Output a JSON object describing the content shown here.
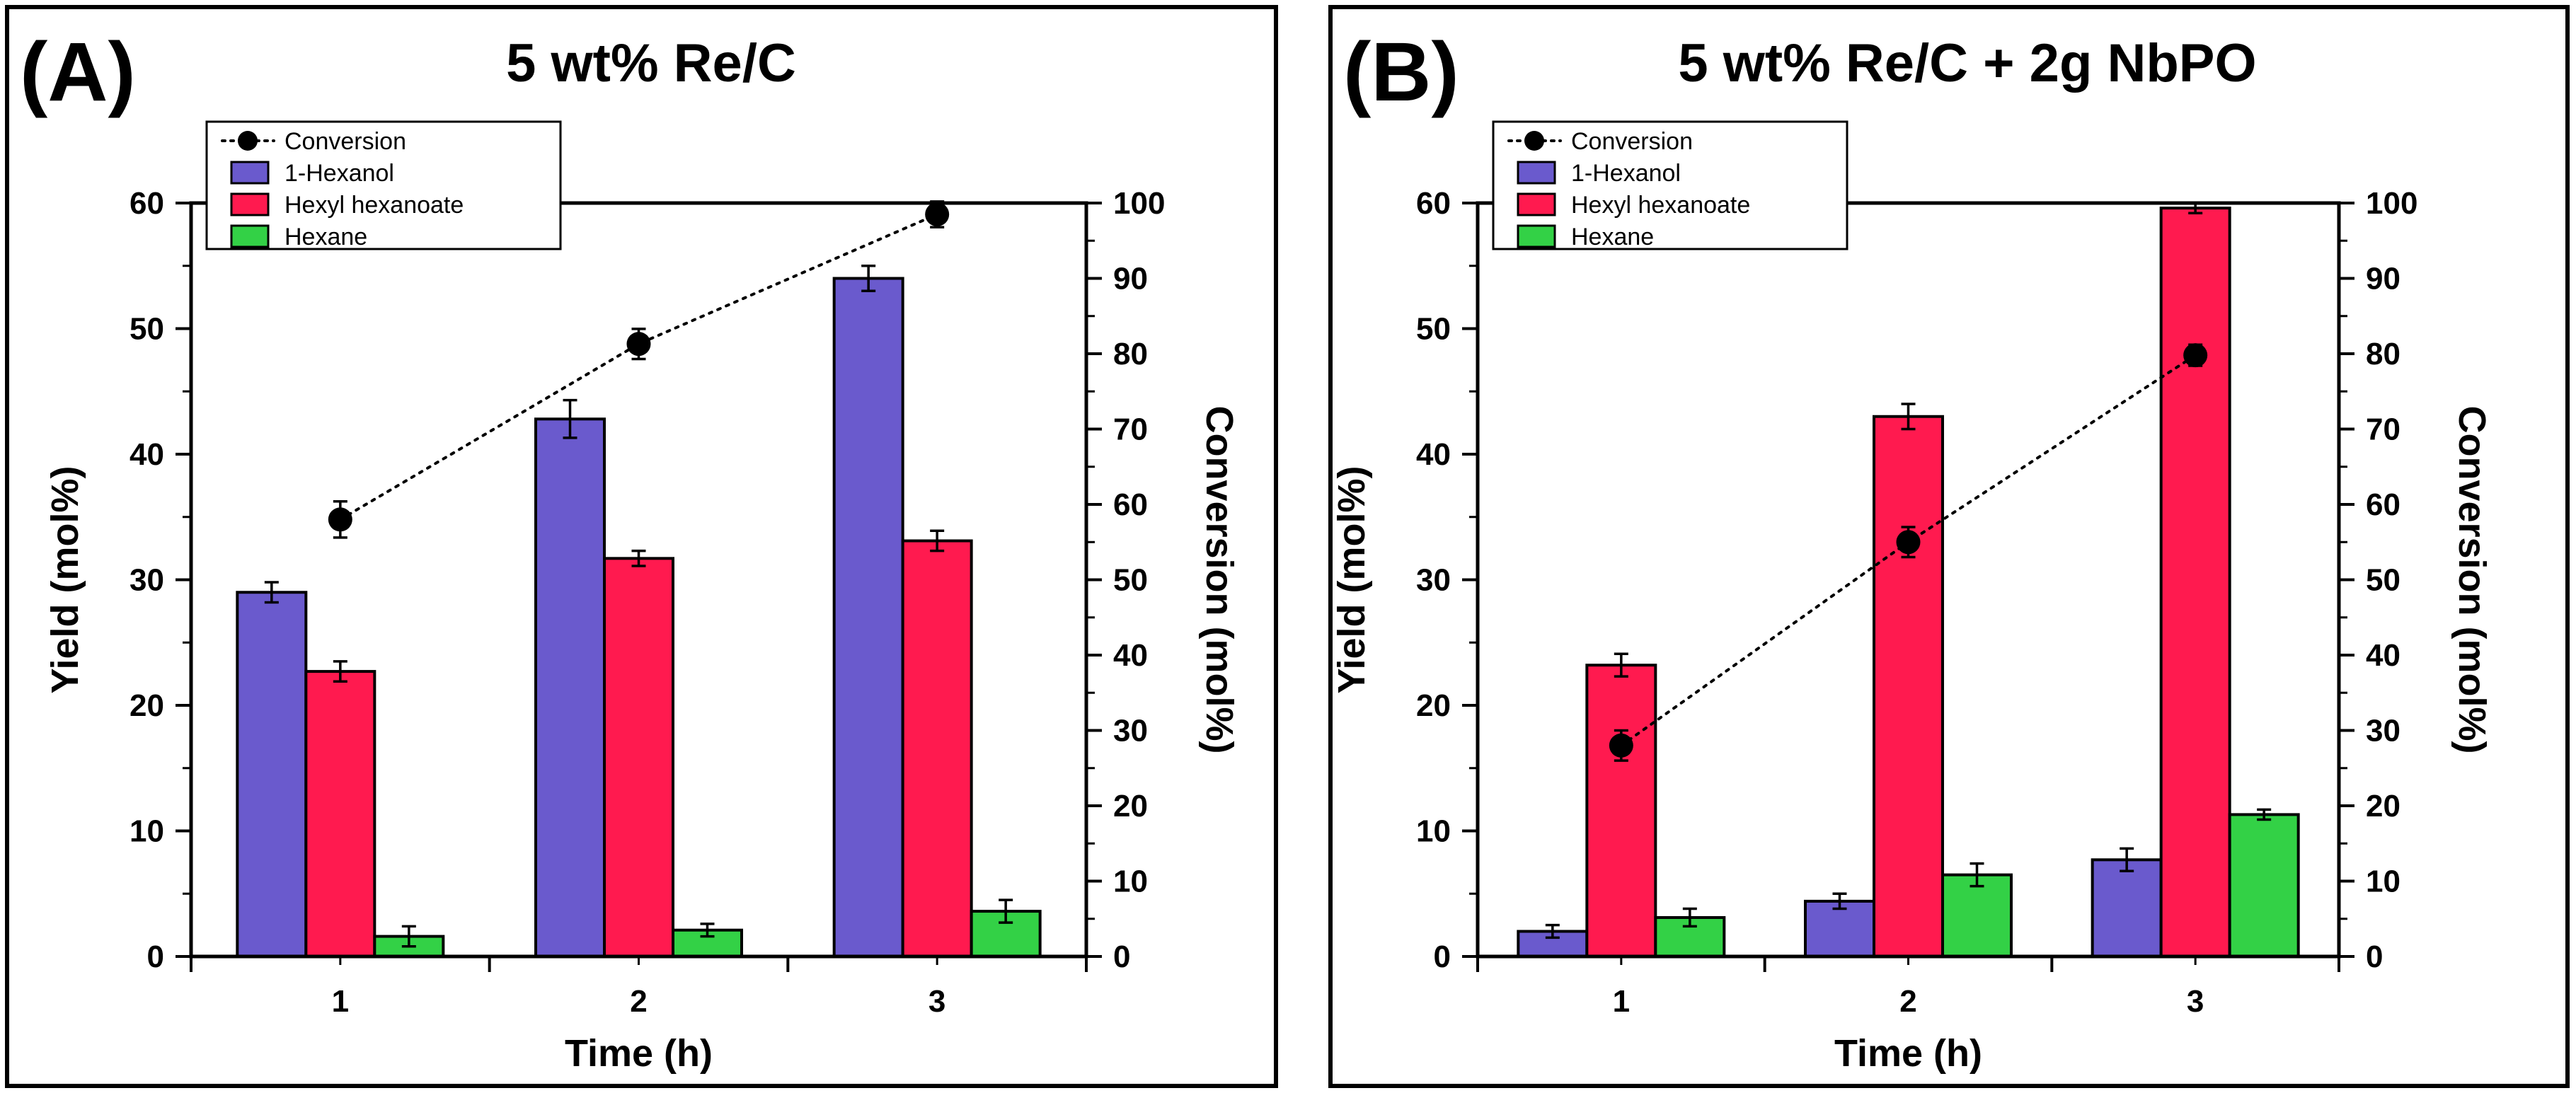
{
  "chart_data": [
    {
      "type": "bar",
      "panel_label": "(A)",
      "title": "5 wt% Re/C",
      "xlabel": "Time (h)",
      "ylabel": "Yield (mol%)",
      "y2label": "Conversion (mol%)",
      "categories": [
        "1",
        "2",
        "3"
      ],
      "ylim": [
        0,
        60
      ],
      "yticks": [
        "0",
        "10",
        "20",
        "30",
        "40",
        "50",
        "60"
      ],
      "y2lim": [
        0,
        100
      ],
      "y2ticks": [
        "0",
        "10",
        "20",
        "30",
        "40",
        "50",
        "60",
        "70",
        "80",
        "90",
        "100"
      ],
      "legend_position": "top-left",
      "series": [
        {
          "name": "1-Hexanol",
          "color": "#6a5acd",
          "values": [
            29.0,
            42.8,
            54.0
          ],
          "errors": [
            0.8,
            1.5,
            1.0
          ]
        },
        {
          "name": "Hexyl hexanoate",
          "color": "#ff1a4f",
          "values": [
            22.7,
            31.7,
            33.1
          ],
          "errors": [
            0.8,
            0.6,
            0.8
          ]
        },
        {
          "name": "Hexane",
          "color": "#33d146",
          "values": [
            1.6,
            2.1,
            3.6
          ],
          "errors": [
            0.8,
            0.5,
            0.9
          ]
        }
      ],
      "line_series": {
        "name": "Conversion",
        "color": "#000000",
        "axis": "right",
        "values": [
          58.0,
          81.3,
          98.5
        ],
        "errors": [
          2.4,
          2.0,
          1.7
        ]
      }
    },
    {
      "type": "bar",
      "panel_label": "(B)",
      "title": "5 wt% Re/C + 2g NbPO",
      "xlabel": "Time (h)",
      "ylabel": "Yield (mol%)",
      "y2label": "Conversion (mol%)",
      "categories": [
        "1",
        "2",
        "3"
      ],
      "ylim": [
        0,
        60
      ],
      "yticks": [
        "0",
        "10",
        "20",
        "30",
        "40",
        "50",
        "60"
      ],
      "y2lim": [
        0,
        100
      ],
      "y2ticks": [
        "0",
        "10",
        "20",
        "30",
        "40",
        "50",
        "60",
        "70",
        "80",
        "90",
        "100"
      ],
      "legend_position": "top-left",
      "series": [
        {
          "name": "1-Hexanol",
          "color": "#6a5acd",
          "values": [
            2.0,
            4.4,
            7.7
          ],
          "errors": [
            0.5,
            0.6,
            0.9
          ]
        },
        {
          "name": "Hexyl hexanoate",
          "color": "#ff1a4f",
          "values": [
            23.2,
            43.0,
            59.6
          ],
          "errors": [
            0.9,
            1.0,
            0.4
          ]
        },
        {
          "name": "Hexane",
          "color": "#33d146",
          "values": [
            3.1,
            6.5,
            11.3
          ],
          "errors": [
            0.7,
            0.9,
            0.4
          ]
        }
      ],
      "line_series": {
        "name": "Conversion",
        "color": "#000000",
        "axis": "right",
        "values": [
          28.0,
          55.0,
          79.8
        ],
        "errors": [
          2.0,
          2.0,
          1.4
        ]
      }
    }
  ]
}
